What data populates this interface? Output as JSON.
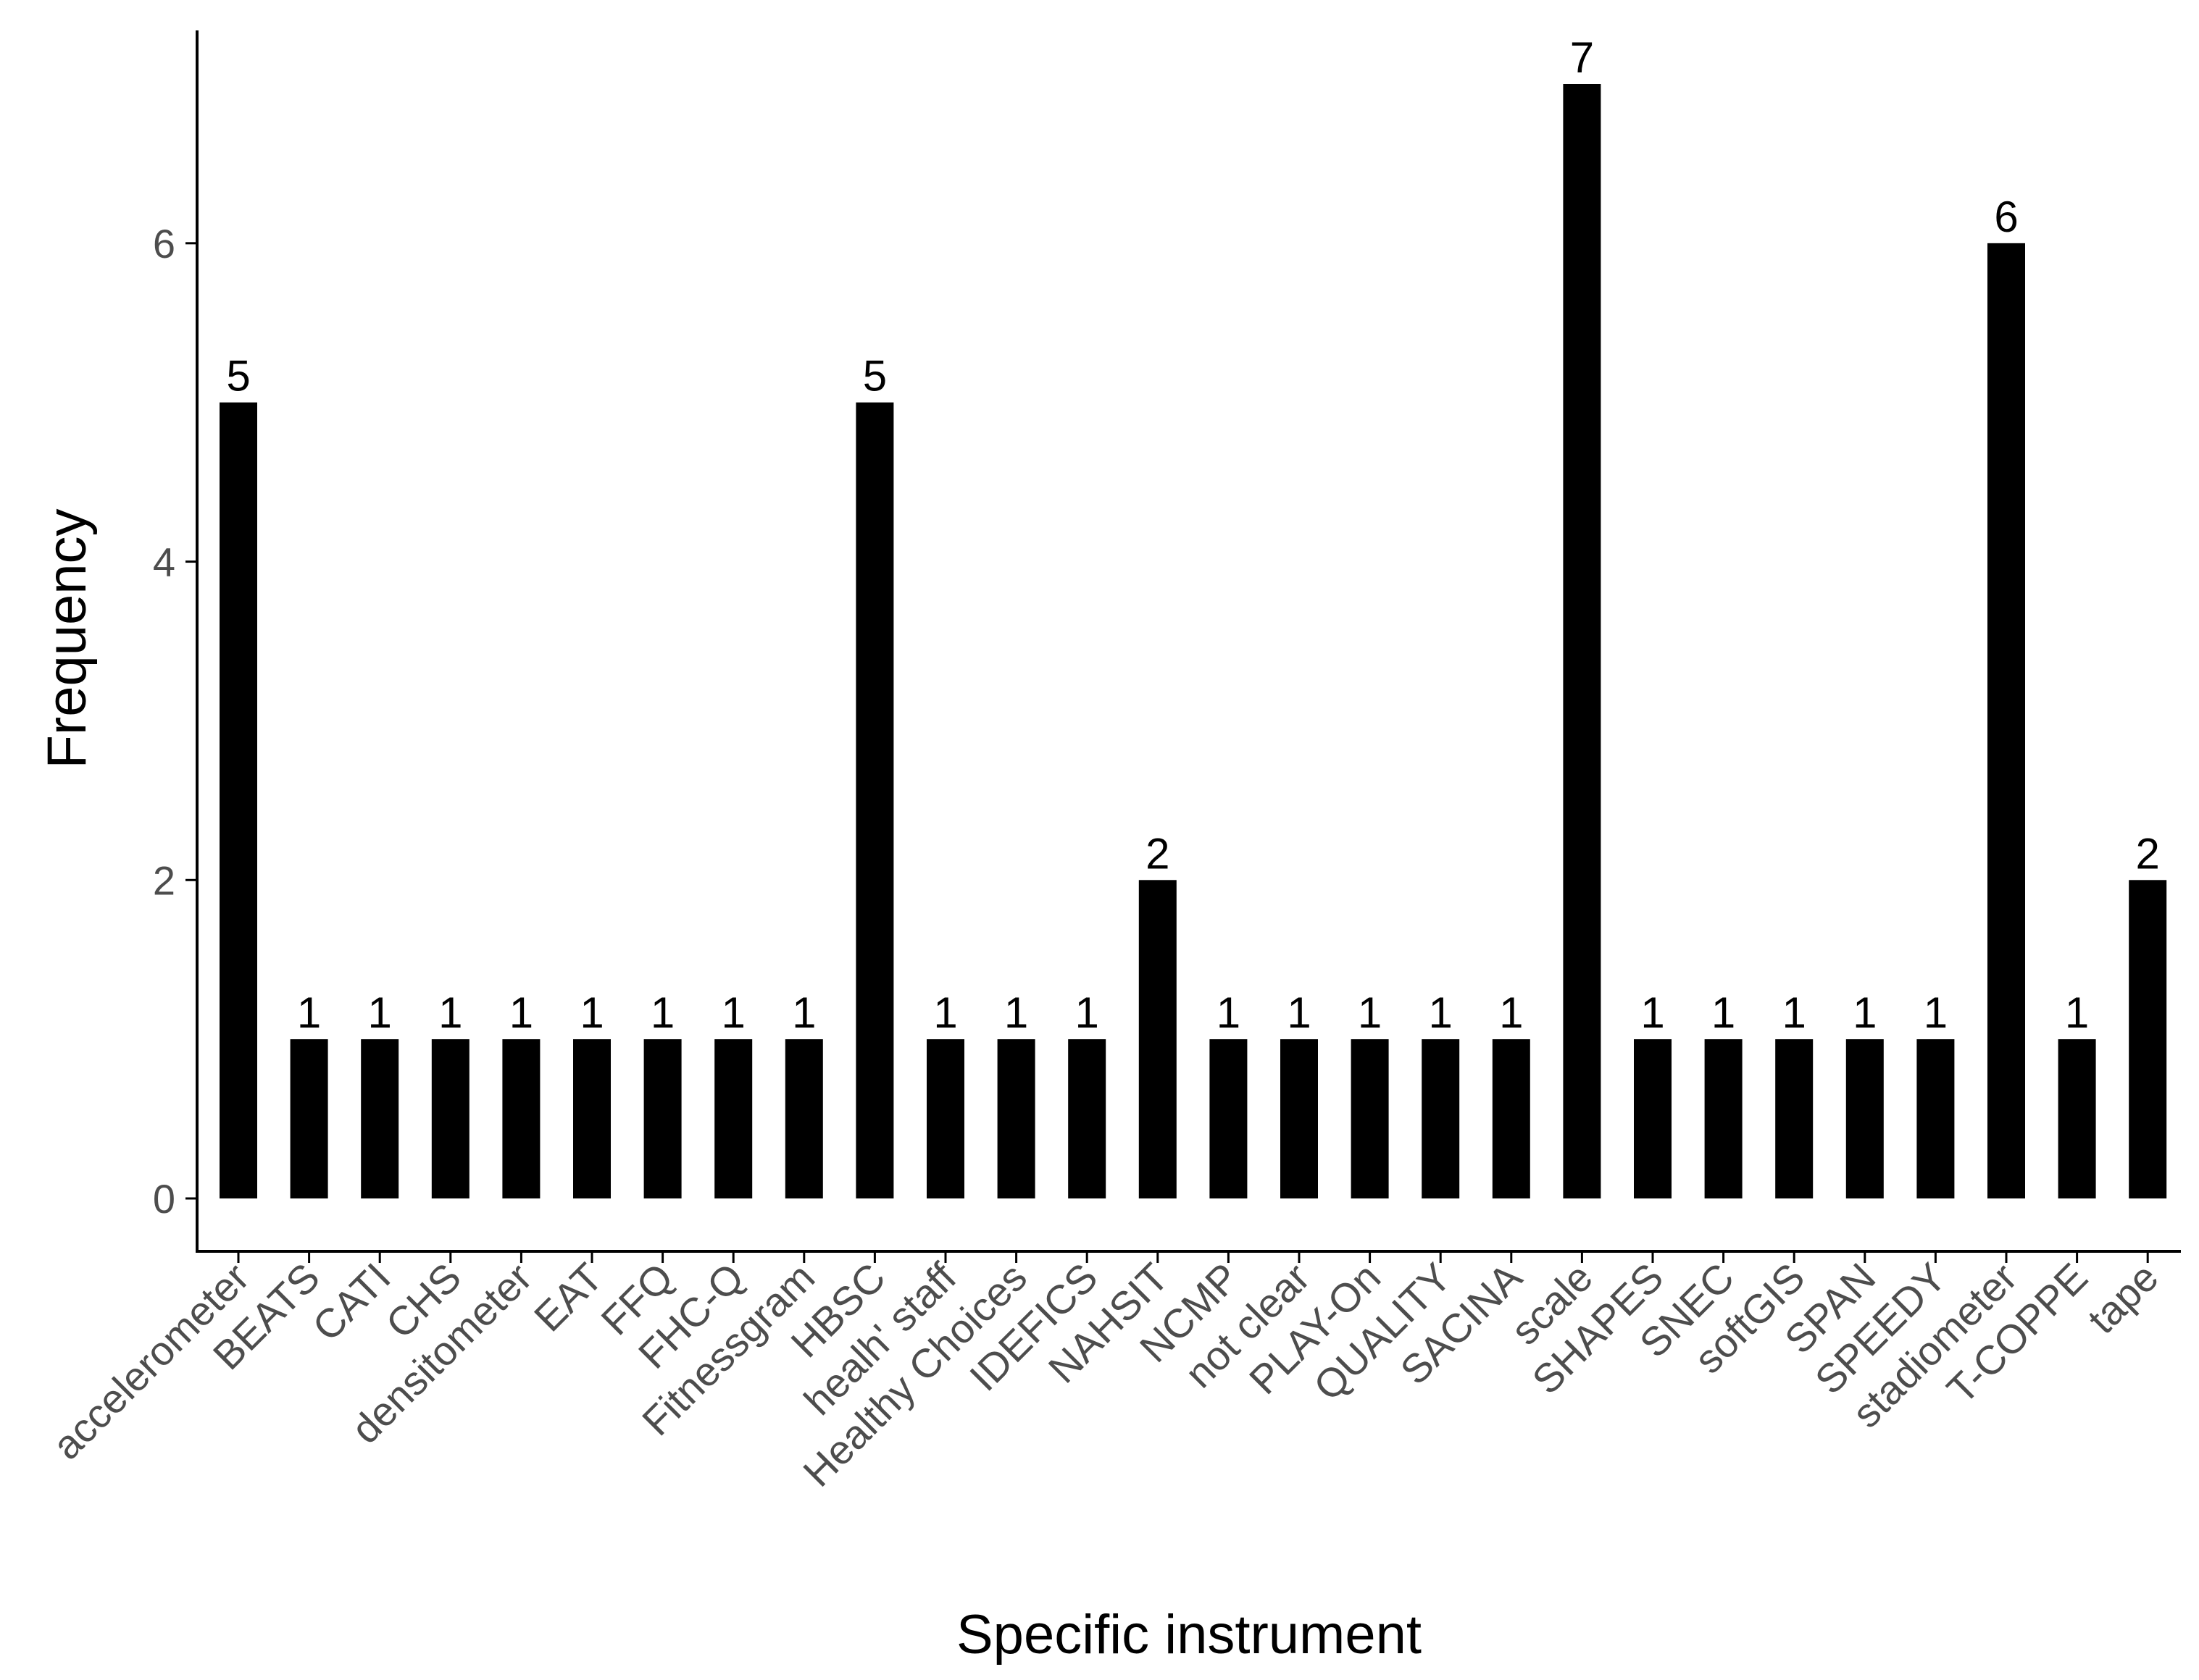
{
  "colors": {
    "bar": "#000000",
    "axis": "#000000",
    "tick_text": "#4d4d4d",
    "label_text": "#000000",
    "background": "#ffffff"
  },
  "chart_data": {
    "type": "bar",
    "xlabel": "Specific instrument",
    "ylabel": "Frequency",
    "ylim": [
      0,
      7
    ],
    "yticks": [
      0,
      2,
      4,
      6
    ],
    "grid": false,
    "legend": "none",
    "categories": [
      "accelerometer",
      "BEATS",
      "CATI",
      "CHS",
      "densitometer",
      "EAT",
      "FFQ",
      "FHC-Q",
      "Fitnessgram",
      "HBSC",
      "healh' staff",
      "Healthy Choices",
      "IDEFICS",
      "NAHSIT",
      "NCMP",
      "not clear",
      "PLAY-On",
      "QUALITY",
      "SACINA",
      "scale",
      "SHAPES",
      "SNEC",
      "softGIS",
      "SPAN",
      "SPEEDY",
      "stadiometer",
      "T-COPPE",
      "tape"
    ],
    "values": [
      5,
      1,
      1,
      1,
      1,
      1,
      1,
      1,
      1,
      5,
      1,
      1,
      1,
      2,
      1,
      1,
      1,
      1,
      1,
      7,
      1,
      1,
      1,
      1,
      1,
      6,
      1,
      2
    ]
  }
}
